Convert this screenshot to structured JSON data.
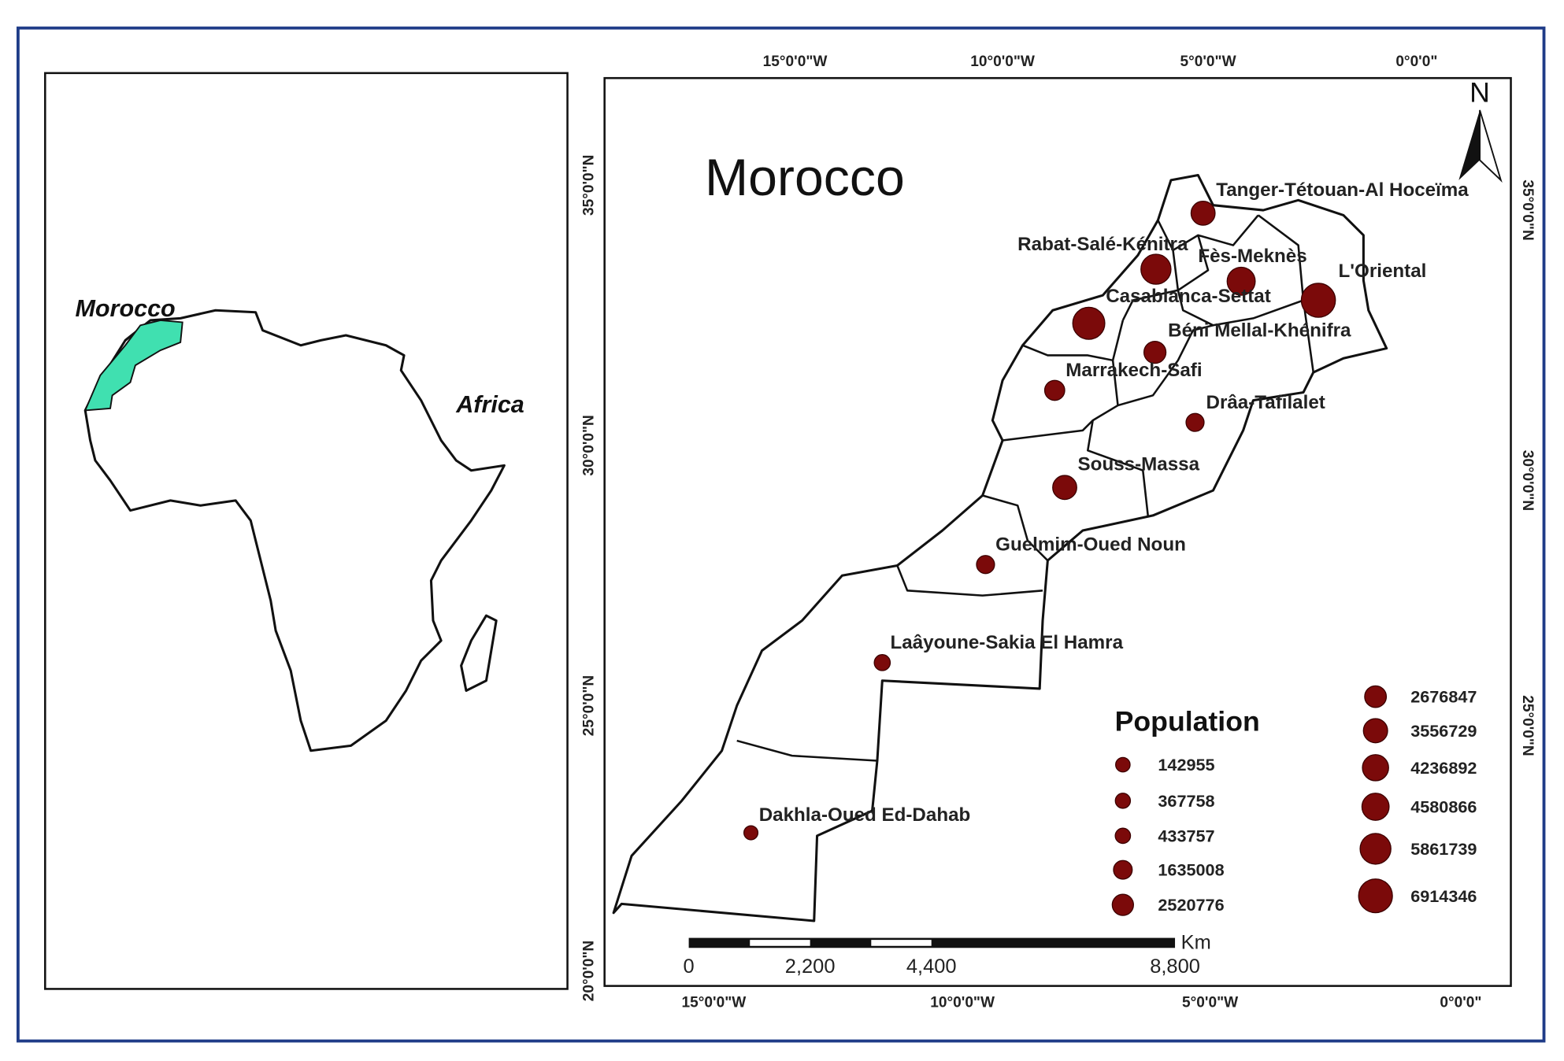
{
  "inset": {
    "labels": [
      "Morocco",
      "Africa"
    ]
  },
  "map": {
    "title": "Morocco",
    "north": "N",
    "top_lon": [
      "15°0'0\"W",
      "10°0'0\"W",
      "5°0'0\"W",
      "0°0'0\""
    ],
    "bottom_lon": [
      "15°0'0\"W",
      "10°0'0\"W",
      "5°0'0\"W",
      "0°0'0\""
    ],
    "left_lat": [
      "35°0'0\"N",
      "30°0'0\"N",
      "25°0'0\"N",
      "20°0'0\"N"
    ],
    "right_lat": [
      "35°0'0\"N",
      "30°0'0\"N",
      "25°0'0\"N"
    ],
    "regions": [
      "Tanger-Tétouan-Al Hoceïma",
      "Rabat-Salé-Kénitra",
      "Fès-Meknès",
      "L'Oriental",
      "Casablanca-Settat",
      "Béni Mellal-Khénifra",
      "Marrakech-Safi",
      "Drâa-Tafilalet",
      "Souss-Massa",
      "Guelmim-Oued Noun",
      "Laâyoune-Sakia El Hamra",
      "Dakhla-Oued Ed-Dahab"
    ]
  },
  "legend": {
    "title": "Population",
    "items": [
      142955,
      367758,
      433757,
      1635008,
      2520776,
      2676847,
      3556729,
      4236892,
      4580866,
      5861739,
      6914346
    ]
  },
  "scale": {
    "labels": [
      "0",
      "2,200",
      "4,400",
      "8,800"
    ],
    "unit": "Km"
  }
}
